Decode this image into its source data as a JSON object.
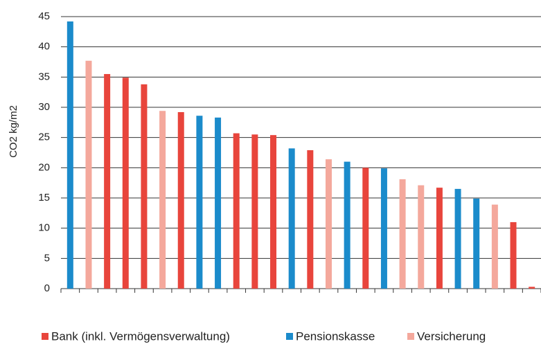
{
  "chart_data": {
    "type": "bar",
    "y_label": "CO2 kg/m2",
    "categories": [
      null,
      null,
      null,
      null,
      null,
      null,
      null,
      null,
      null,
      null,
      null,
      null,
      null,
      null,
      null,
      null,
      null,
      null,
      null,
      null,
      null,
      null,
      null,
      null,
      null,
      null
    ],
    "series": [
      {
        "name": "Bank (inkl. Vermögensverwaltung)",
        "color": "#e8453c",
        "values": [
          null,
          null,
          35.5,
          34.9,
          33.8,
          null,
          29.2,
          null,
          null,
          25.7,
          25.5,
          25.4,
          null,
          22.9,
          null,
          null,
          20.0,
          null,
          null,
          null,
          16.7,
          null,
          null,
          null,
          11.0,
          0.3
        ]
      },
      {
        "name": "Pensionskasse",
        "color": "#1b8bcb",
        "values": [
          44.2,
          null,
          null,
          null,
          null,
          null,
          null,
          28.6,
          28.3,
          null,
          null,
          null,
          23.2,
          null,
          null,
          21.0,
          null,
          19.9,
          null,
          null,
          null,
          16.5,
          14.9,
          null,
          null,
          null
        ]
      },
      {
        "name": "Versicherung",
        "color": "#f4a89c",
        "values": [
          null,
          37.7,
          null,
          null,
          null,
          29.4,
          null,
          null,
          null,
          null,
          null,
          null,
          null,
          null,
          21.4,
          null,
          null,
          null,
          18.1,
          17.1,
          null,
          null,
          null,
          13.9,
          null,
          null
        ]
      }
    ],
    "ylim": [
      0,
      45
    ],
    "yticks": [
      0,
      5,
      10,
      15,
      20,
      25,
      30,
      35,
      40,
      45
    ],
    "grid": true
  }
}
